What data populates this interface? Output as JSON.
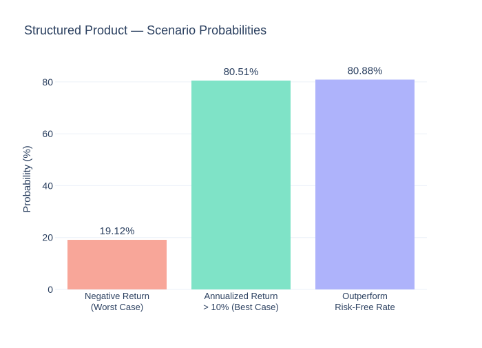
{
  "chart_data": {
    "type": "bar",
    "title": "Structured Product — Scenario Probabilities",
    "xlabel": "",
    "ylabel": "Probability (%)",
    "ylim": [
      0,
      85
    ],
    "yticks": [
      0,
      20,
      40,
      60,
      80
    ],
    "grid": true,
    "legend": "none",
    "categories": [
      [
        "Negative Return",
        "(Worst Case)"
      ],
      [
        "Annualized Return",
        "> 10% (Best Case)"
      ],
      [
        "Outperform",
        "Risk-Free Rate"
      ]
    ],
    "values": [
      19.12,
      80.51,
      80.88
    ],
    "data_labels": [
      "19.12%",
      "80.51%",
      "80.88%"
    ],
    "colors": [
      "#f8a699",
      "#7fe3c7",
      "#aeb3fb"
    ]
  },
  "theme": {
    "text_color": "#2a3f5f",
    "grid_color": "#ebf0f8",
    "axis_line_color": "#ebf0f8"
  }
}
